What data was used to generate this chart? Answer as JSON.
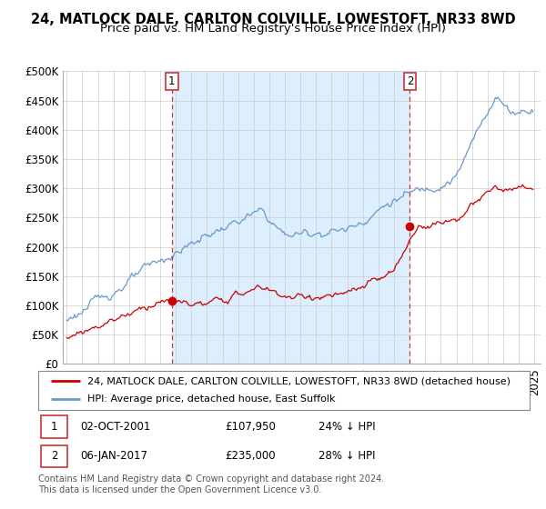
{
  "title": "24, MATLOCK DALE, CARLTON COLVILLE, LOWESTOFT, NR33 8WD",
  "subtitle": "Price paid vs. HM Land Registry's House Price Index (HPI)",
  "ylabel_ticks": [
    "£0",
    "£50K",
    "£100K",
    "£150K",
    "£200K",
    "£250K",
    "£300K",
    "£350K",
    "£400K",
    "£450K",
    "£500K"
  ],
  "ytick_values": [
    0,
    50000,
    100000,
    150000,
    200000,
    250000,
    300000,
    350000,
    400000,
    450000,
    500000
  ],
  "ylim": [
    0,
    500000
  ],
  "xlim_start": 1994.75,
  "xlim_end": 2025.4,
  "sale1_date": 2001.75,
  "sale1_price": 107950,
  "sale2_date": 2017.02,
  "sale2_price": 235000,
  "marker_color": "#cc0000",
  "hpi_color": "#6699cc",
  "sale_color": "#cc0000",
  "vline_color": "#cc3333",
  "shading_color": "#ddeeff",
  "background_color": "#ffffff",
  "grid_color": "#cccccc",
  "legend_entry1": "24, MATLOCK DALE, CARLTON COLVILLE, LOWESTOFT, NR33 8WD (detached house)",
  "legend_entry2": "HPI: Average price, detached house, East Suffolk",
  "table_row1": [
    "1",
    "02-OCT-2001",
    "£107,950",
    "24% ↓ HPI"
  ],
  "table_row2": [
    "2",
    "06-JAN-2017",
    "£235,000",
    "28% ↓ HPI"
  ],
  "footer": "Contains HM Land Registry data © Crown copyright and database right 2024.\nThis data is licensed under the Open Government Licence v3.0.",
  "title_fontsize": 10.5,
  "subtitle_fontsize": 9.5,
  "tick_fontsize": 8.5,
  "legend_fontsize": 8.0,
  "table_fontsize": 8.5,
  "footer_fontsize": 7.0
}
